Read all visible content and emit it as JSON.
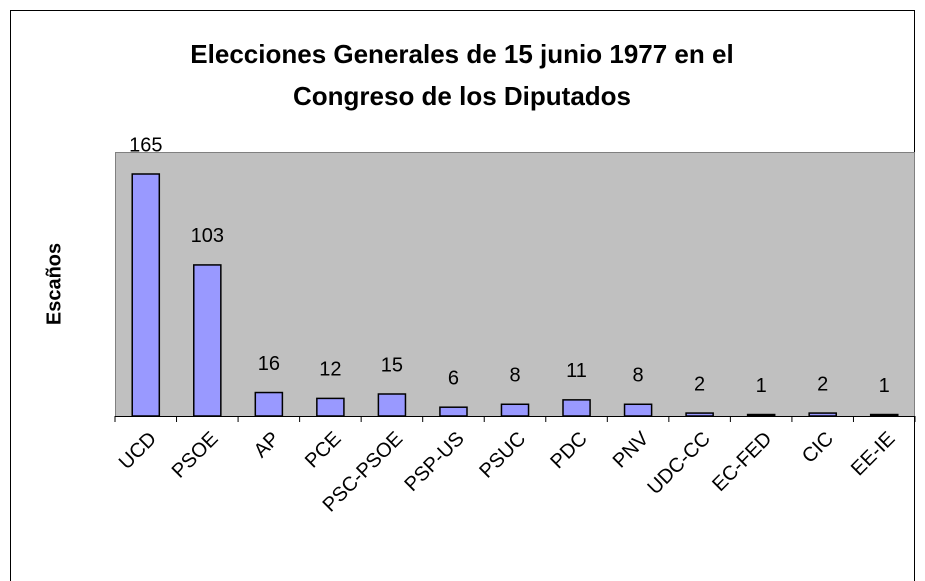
{
  "chart_data": {
    "type": "bar",
    "title": [
      "Elecciones Generales de 15 junio 1977 en el",
      "Congreso de los Diputados"
    ],
    "y_label": "Escaños",
    "categories": [
      "UCD",
      "PSOE",
      "AP",
      "PCE",
      "PSC-PSOE",
      "PSP-US",
      "PSUC",
      "PDC",
      "PNV",
      "UDC-CC",
      "EC-FED",
      "CIC",
      "EE-IE"
    ],
    "values": [
      165,
      103,
      16,
      12,
      15,
      6,
      8,
      11,
      8,
      2,
      1,
      2,
      1
    ],
    "color": "#9999ff",
    "ylim": [
      0,
      180
    ],
    "grid": false
  }
}
